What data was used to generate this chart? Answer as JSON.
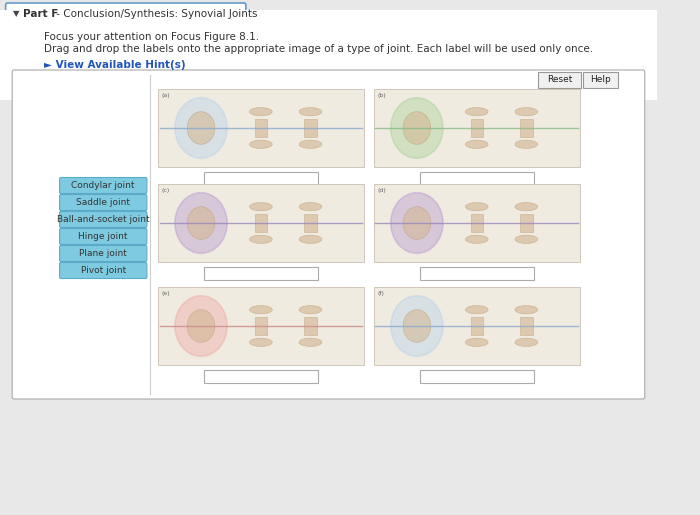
{
  "title_bold": "Part F",
  "title_rest": " - Conclusion/Synthesis: Synovial Joints",
  "instruction_line1": "Focus your attention on Focus Figure 8.1.",
  "instruction_line2": "Drag and drop the labels onto the appropriate image of a type of joint. Each label will be used only once.",
  "hint_text": "► View Available Hint(s)",
  "hint_color": "#2255bb",
  "header_border": "#6699cc",
  "text_color": "#333333",
  "labels": [
    "Condylar joint",
    "Saddle joint",
    "Ball-and-socket joint",
    "Hinge joint",
    "Plane joint",
    "Pivot joint"
  ],
  "label_bg": "#7ecae0",
  "label_border": "#5aaac8",
  "main_bg": "#ffffff",
  "outer_bg": "#e8e8e8",
  "main_border": "#aaaaaa",
  "panel_bg": "#f0ebe0",
  "circle_colors": [
    "#aaccee",
    "#99cc88",
    "#aa88cc",
    "#aa88cc",
    "#ee9999",
    "#aaccee"
  ],
  "panel_line_colors": [
    "#88aace",
    "#88bb88",
    "#9988bb",
    "#9988bb",
    "#cc8888",
    "#88aace"
  ],
  "answer_box_color": "#ffffff",
  "answer_box_border": "#aaaaaa",
  "btn_color": "#f0f0f0",
  "btn_border": "#999999"
}
